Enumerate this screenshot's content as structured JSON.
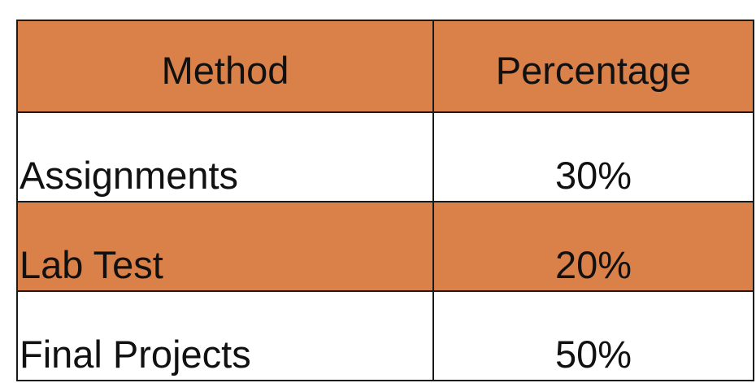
{
  "colors": {
    "accent_fill": "#DA8149",
    "plain_fill": "#FFFFFF",
    "border": "#1A1A1A",
    "text": "#111111"
  },
  "table": {
    "headers": {
      "method": "Method",
      "percentage": "Percentage"
    },
    "rows": [
      {
        "method": "Assignments",
        "percentage": "30%",
        "highlighted": false
      },
      {
        "method": "Lab Test",
        "percentage": "20%",
        "highlighted": true
      },
      {
        "method": "Final Projects",
        "percentage": "50%",
        "highlighted": false
      }
    ]
  }
}
